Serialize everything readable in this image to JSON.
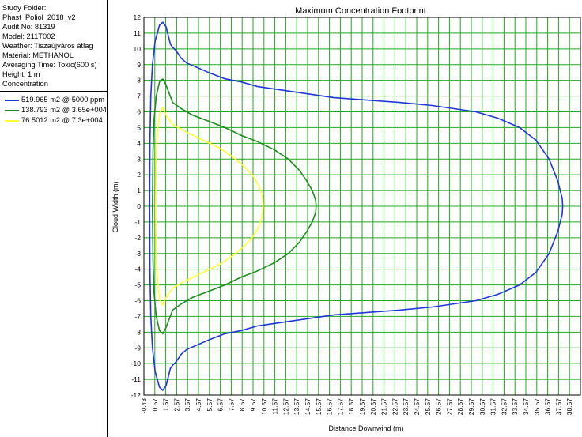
{
  "info": {
    "lines": [
      "Study Folder:",
      "Phast_Poliol_2018_v2",
      "Audit No: 81319",
      "Model: 211T002",
      "Weather: Tiszaújváros átlag",
      "Material: METHANOL",
      "Averaging Time: Toxic(600 s)",
      "Height: 1 m",
      "Concentration"
    ]
  },
  "legend": [
    {
      "label": "519.965 m2 @ 5000 ppm",
      "color": "#1f36d8"
    },
    {
      "label": "138.793 m2 @ 3.65e+004",
      "color": "#1f8c1f"
    },
    {
      "label": "76.5012 m2 @ 7.3e+004",
      "color": "#ffff33"
    }
  ],
  "colors": {
    "grid": "#22a822",
    "frame": "#000000",
    "background": "#ffffff"
  },
  "chart_data": {
    "type": "line",
    "title": "Maximum Concentration Footprint",
    "xlabel": "Distance Downwind (m)",
    "ylabel": "Cloud Width (m)",
    "xlim": [
      -0.43,
      39.57
    ],
    "ylim": [
      -12,
      12
    ],
    "x_ticks": [
      "-0.43",
      "0.57",
      "1.57",
      "2.57",
      "3.57",
      "4.57",
      "5.57",
      "6.57",
      "7.57",
      "8.57",
      "9.57",
      "10.57",
      "11.57",
      "12.57",
      "13.57",
      "14.57",
      "15.57",
      "16.57",
      "17.57",
      "18.57",
      "19.57",
      "20.57",
      "21.57",
      "22.57",
      "23.57",
      "24.57",
      "25.57",
      "26.57",
      "27.57",
      "28.57",
      "29.57",
      "30.57",
      "31.57",
      "32.57",
      "33.57",
      "34.57",
      "35.57",
      "36.57",
      "37.57",
      "38.57"
    ],
    "y_ticks": [
      "12",
      "11",
      "10",
      "9",
      "8",
      "7",
      "6",
      "5",
      "4",
      "3",
      "2",
      "1",
      "0",
      "-1",
      "-2",
      "-3",
      "-4",
      "-5",
      "-6",
      "-7",
      "-8",
      "-9",
      "-10",
      "-11",
      "-12"
    ],
    "grid": true,
    "series": [
      {
        "name": "519.965 m2 @ 5000 ppm",
        "color": "#1f36d8",
        "points": [
          [
            1.3,
            11.7
          ],
          [
            1.0,
            11.5
          ],
          [
            0.6,
            10.5
          ],
          [
            0.35,
            9.0
          ],
          [
            0.2,
            7.0
          ],
          [
            0.12,
            4.0
          ],
          [
            0.1,
            0.0
          ],
          [
            0.12,
            -4.0
          ],
          [
            0.2,
            -7.0
          ],
          [
            0.35,
            -9.0
          ],
          [
            0.6,
            -10.5
          ],
          [
            1.0,
            -11.5
          ],
          [
            1.3,
            -11.7
          ],
          [
            1.6,
            -11.4
          ],
          [
            2.0,
            -10.3
          ],
          [
            2.2,
            -10.1
          ],
          [
            2.5,
            -9.9
          ],
          [
            3.0,
            -9.4
          ],
          [
            3.5,
            -9.1
          ],
          [
            4.5,
            -8.8
          ],
          [
            5.5,
            -8.5
          ],
          [
            7.0,
            -8.1
          ],
          [
            8.5,
            -7.9
          ],
          [
            10.0,
            -7.6
          ],
          [
            11.5,
            -7.45
          ],
          [
            13.0,
            -7.3
          ],
          [
            15.0,
            -7.1
          ],
          [
            17.0,
            -6.9
          ],
          [
            20.0,
            -6.75
          ],
          [
            23.0,
            -6.6
          ],
          [
            26.0,
            -6.4
          ],
          [
            28.0,
            -6.2
          ],
          [
            30.0,
            -6.0
          ],
          [
            32.0,
            -5.6
          ],
          [
            34.0,
            -5.0
          ],
          [
            35.5,
            -4.2
          ],
          [
            36.7,
            -3.0
          ],
          [
            37.5,
            -1.6
          ],
          [
            37.9,
            -0.5
          ],
          [
            37.95,
            0.0
          ],
          [
            37.9,
            0.5
          ],
          [
            37.5,
            1.6
          ],
          [
            36.7,
            3.0
          ],
          [
            35.5,
            4.2
          ],
          [
            34.0,
            5.0
          ],
          [
            32.0,
            5.6
          ],
          [
            30.0,
            6.0
          ],
          [
            28.0,
            6.2
          ],
          [
            26.0,
            6.4
          ],
          [
            23.0,
            6.6
          ],
          [
            20.0,
            6.75
          ],
          [
            17.0,
            6.9
          ],
          [
            15.0,
            7.1
          ],
          [
            13.0,
            7.3
          ],
          [
            11.5,
            7.45
          ],
          [
            10.0,
            7.6
          ],
          [
            8.5,
            7.9
          ],
          [
            7.0,
            8.1
          ],
          [
            5.5,
            8.5
          ],
          [
            4.5,
            8.8
          ],
          [
            3.5,
            9.1
          ],
          [
            3.0,
            9.4
          ],
          [
            2.5,
            9.9
          ],
          [
            2.2,
            10.1
          ],
          [
            2.0,
            10.3
          ],
          [
            1.6,
            11.4
          ],
          [
            1.3,
            11.7
          ]
        ]
      },
      {
        "name": "138.793 m2 @ 3.65e+004",
        "color": "#1f8c1f",
        "points": [
          [
            1.3,
            8.1
          ],
          [
            1.0,
            7.9
          ],
          [
            0.7,
            7.0
          ],
          [
            0.5,
            5.5
          ],
          [
            0.4,
            3.5
          ],
          [
            0.35,
            0.0
          ],
          [
            0.4,
            -3.5
          ],
          [
            0.5,
            -5.5
          ],
          [
            0.7,
            -7.0
          ],
          [
            1.0,
            -7.9
          ],
          [
            1.3,
            -8.1
          ],
          [
            1.6,
            -7.7
          ],
          [
            2.2,
            -6.6
          ],
          [
            3.0,
            -6.2
          ],
          [
            4.0,
            -5.8
          ],
          [
            5.5,
            -5.4
          ],
          [
            7.0,
            -5.0
          ],
          [
            8.5,
            -4.5
          ],
          [
            10.0,
            -4.1
          ],
          [
            11.5,
            -3.6
          ],
          [
            12.8,
            -3.0
          ],
          [
            13.8,
            -2.3
          ],
          [
            14.5,
            -1.6
          ],
          [
            15.0,
            -1.0
          ],
          [
            15.3,
            -0.4
          ],
          [
            15.35,
            0.0
          ],
          [
            15.3,
            0.4
          ],
          [
            15.0,
            1.0
          ],
          [
            14.5,
            1.6
          ],
          [
            13.8,
            2.3
          ],
          [
            12.8,
            3.0
          ],
          [
            11.5,
            3.6
          ],
          [
            10.0,
            4.1
          ],
          [
            8.5,
            4.5
          ],
          [
            7.0,
            5.0
          ],
          [
            5.5,
            5.4
          ],
          [
            4.0,
            5.8
          ],
          [
            3.0,
            6.2
          ],
          [
            2.2,
            6.6
          ],
          [
            1.6,
            7.7
          ],
          [
            1.3,
            8.1
          ]
        ]
      },
      {
        "name": "76.5012 m2 @ 7.3e+004",
        "color": "#ffff33",
        "points": [
          [
            1.3,
            6.3
          ],
          [
            1.05,
            6.0
          ],
          [
            0.85,
            5.0
          ],
          [
            0.7,
            3.5
          ],
          [
            0.65,
            0.0
          ],
          [
            0.7,
            -3.5
          ],
          [
            0.85,
            -5.0
          ],
          [
            1.05,
            -6.0
          ],
          [
            1.3,
            -6.3
          ],
          [
            1.6,
            -5.8
          ],
          [
            2.2,
            -5.2
          ],
          [
            3.5,
            -4.7
          ],
          [
            5.0,
            -4.2
          ],
          [
            6.5,
            -3.7
          ],
          [
            7.8,
            -3.1
          ],
          [
            8.8,
            -2.5
          ],
          [
            9.6,
            -1.9
          ],
          [
            10.1,
            -1.3
          ],
          [
            10.4,
            -0.7
          ],
          [
            10.5,
            0.0
          ],
          [
            10.4,
            0.7
          ],
          [
            10.1,
            1.3
          ],
          [
            9.6,
            1.9
          ],
          [
            8.8,
            2.5
          ],
          [
            7.8,
            3.1
          ],
          [
            6.5,
            3.7
          ],
          [
            5.0,
            4.2
          ],
          [
            3.5,
            4.7
          ],
          [
            2.2,
            5.2
          ],
          [
            1.6,
            5.8
          ],
          [
            1.3,
            6.3
          ]
        ]
      }
    ]
  }
}
